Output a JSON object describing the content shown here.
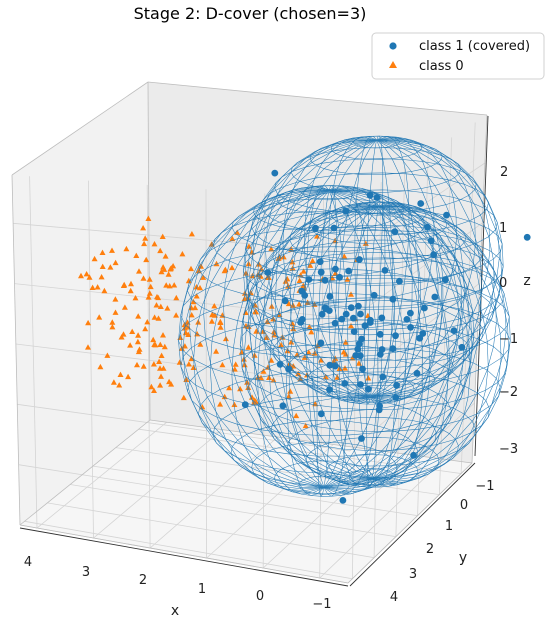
{
  "chart_data": {
    "type": "scatter",
    "title": "Stage 2: D-cover (chosen=3)",
    "xlabel": "x",
    "ylabel": "y",
    "zlabel": "z",
    "x_ticks": [
      "4",
      "3",
      "2",
      "1",
      "0",
      "−1"
    ],
    "y_ticks": [
      "−1",
      "0",
      "1",
      "2",
      "3",
      "4"
    ],
    "z_ticks": [
      "2",
      "1",
      "0",
      "−1",
      "−2",
      "−3"
    ],
    "xlim": [
      -1.5,
      4.3
    ],
    "ylim": [
      -1.5,
      4.2
    ],
    "zlim": [
      -3,
      2.8
    ],
    "grid": true,
    "legend_position": "top-right",
    "colors": {
      "class1": "#1f77b4",
      "class0": "#ff7f0e"
    },
    "series": [
      {
        "name": "class 1 (covered)",
        "marker": "circle"
      },
      {
        "name": "class 0",
        "marker": "triangle"
      }
    ],
    "spheres": [
      {
        "center": [
          -0.3,
          0.2,
          0.6
        ],
        "radius": 2.1
      },
      {
        "center": [
          0.1,
          1.2,
          -0.3
        ],
        "radius": 2.4
      },
      {
        "center": [
          -0.6,
          0.8,
          -0.4
        ],
        "radius": 2.2
      }
    ],
    "class1_cluster": {
      "center": [
        -0.3,
        0.8,
        -0.1
      ],
      "spread": 0.9,
      "count": 90
    },
    "class0_cluster": {
      "x_range": [
        0.0,
        4.2
      ],
      "y_range": [
        -0.5,
        2.0
      ],
      "z_range": [
        -1.6,
        0.9
      ],
      "count": 280
    }
  }
}
